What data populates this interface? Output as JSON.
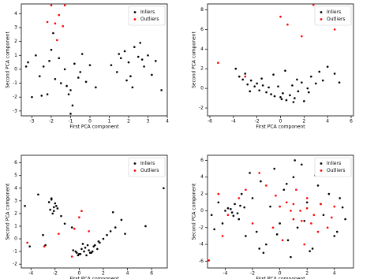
{
  "chart_data": [
    {
      "type": "scatter",
      "x_label": "First PCA component",
      "y_label": "Second PCA component",
      "legend": "upper right",
      "xlim": [
        -3.55,
        4.0
      ],
      "xticks": [
        -3,
        -2,
        -1,
        0,
        1,
        2,
        3,
        4
      ],
      "ylim": [
        -3.35,
        4.7
      ],
      "yticks": [
        -3,
        -2,
        -1,
        0,
        1,
        2,
        3,
        4
      ],
      "series": [
        {
          "name": "Inliers",
          "color": "#000000",
          "x": [
            -3.2,
            -3.0,
            -2.8,
            -2.6,
            -2.4,
            -2.2,
            -2.0,
            -1.8,
            -1.6,
            -1.5,
            -1.3,
            -1.2,
            -1.0,
            -0.8,
            -0.6,
            -0.4,
            -0.2,
            0.0,
            0.3,
            -2.5,
            -1.9,
            -1.1,
            -0.5,
            -3.3,
            -2.1,
            1.1,
            1.4,
            1.6,
            1.8,
            2.0,
            2.1,
            2.3,
            2.5,
            2.6,
            2.8,
            3.0,
            3.2,
            3.4,
            3.7,
            1.5,
            2.2,
            2.7,
            1.9,
            -0.9,
            -1.0
          ],
          "values": [
            0.5,
            -2.0,
            1.0,
            -0.5,
            0.2,
            -1.8,
            1.4,
            -0.7,
            0.8,
            -1.0,
            0.0,
            -1.2,
            -1.5,
            0.4,
            -0.6,
            1.1,
            -0.9,
            0.3,
            -1.3,
            -1.9,
            2.6,
            -1.8,
            -0.2,
            0.2,
            0.6,
            0.3,
            -0.2,
            0.8,
            1.3,
            0.5,
            -0.5,
            1.6,
            0.9,
            1.9,
            0.2,
            1.0,
            -0.4,
            0.6,
            -1.5,
            1.1,
            -1.3,
            0.7,
            -0.8,
            -2.6,
            -3.2
          ]
        },
        {
          "name": "Outliers",
          "color": "#ff0000",
          "x": [
            -2.0,
            -1.6,
            -1.8,
            -1.4,
            -2.2,
            -1.3,
            -1.7
          ],
          "values": [
            4.6,
            3.9,
            3.3,
            3.1,
            3.4,
            4.6,
            2.1
          ]
        }
      ]
    },
    {
      "type": "scatter",
      "x_label": "First PCA component",
      "y_label": "Second PCA component",
      "legend": "upper right",
      "xlim": [
        -6.2,
        6.2
      ],
      "xticks": [
        -6,
        -4,
        -2,
        0,
        2,
        4,
        6
      ],
      "ylim": [
        -2.8,
        8.6
      ],
      "yticks": [
        -2,
        0,
        2,
        4,
        6,
        8
      ],
      "series": [
        {
          "name": "Inliers",
          "color": "#000000",
          "x": [
            -3.8,
            -3.5,
            -3.2,
            -3.0,
            -2.8,
            -2.5,
            -2.2,
            -2.0,
            -1.8,
            -1.5,
            -1.2,
            -1.0,
            -0.8,
            -0.5,
            -0.2,
            0.0,
            0.2,
            0.5,
            0.8,
            1.0,
            1.2,
            1.5,
            1.8,
            2.0,
            2.3,
            2.6,
            3.0,
            3.3,
            3.6,
            4.0,
            -1.6,
            -0.6,
            0.4,
            1.4,
            2.4,
            -2.6,
            1.1,
            0.1,
            4.6,
            5.0
          ],
          "values": [
            2.0,
            1.2,
            0.9,
            1.5,
            0.4,
            0.8,
            0.2,
            0.5,
            -0.2,
            0.3,
            -0.4,
            0.1,
            -0.6,
            -0.8,
            0.2,
            -0.9,
            -0.5,
            -1.2,
            -0.7,
            0.3,
            -1.0,
            -0.3,
            0.6,
            -1.3,
            0.0,
            1.2,
            0.5,
            1.7,
            0.8,
            2.2,
            1.0,
            1.4,
            1.8,
            0.9,
            -0.4,
            -0.3,
            -1.4,
            -1.1,
            1.5,
            0.6
          ]
        },
        {
          "name": "Outliers",
          "color": "#ff0000",
          "x": [
            -5.3,
            -3.0,
            0.0,
            0.6,
            2.8,
            4.6,
            1.8
          ],
          "values": [
            2.6,
            1.2,
            7.3,
            6.5,
            8.5,
            6.0,
            5.3
          ]
        }
      ]
    },
    {
      "type": "scatter",
      "x_label": "First PCA component",
      "y_label": "Second PCA component",
      "legend": "upper right",
      "xlim": [
        -4.8,
        7.3
      ],
      "xticks": [
        -4,
        -2,
        0,
        2,
        4,
        6
      ],
      "ylim": [
        -2.3,
        6.6
      ],
      "yticks": [
        -2,
        -1,
        0,
        1,
        2,
        3,
        4,
        5,
        6
      ],
      "series": [
        {
          "name": "Inliers",
          "color": "#000000",
          "x": [
            -2.5,
            -2.3,
            -2.1,
            -1.9,
            -2.4,
            -2.2,
            -2.0,
            -2.3,
            -2.1,
            -1.8,
            -0.5,
            -0.2,
            0.0,
            0.2,
            0.4,
            0.6,
            0.8,
            1.0,
            1.2,
            1.5,
            -0.3,
            0.1,
            0.5,
            0.9,
            1.3,
            1.7,
            2.0,
            2.3,
            2.6,
            3.0,
            -4.5,
            -3.4,
            -3.0,
            -2.8,
            -1.5,
            -1.2,
            -0.6,
            3.5,
            4.5,
            7.0,
            0.3,
            0.7,
            1.1,
            -0.1,
            2.8,
            -4.1,
            3.8,
            5.5,
            0.0,
            1.6
          ],
          "values": [
            2.9,
            3.1,
            2.5,
            2.6,
            2.3,
            2.0,
            2.8,
            3.2,
            2.2,
            2.4,
            -0.9,
            -1.1,
            -1.2,
            -0.8,
            -1.0,
            -1.3,
            -0.9,
            -1.1,
            -0.6,
            -0.8,
            -1.0,
            -1.2,
            -0.7,
            -1.1,
            -0.5,
            -0.3,
            0.0,
            0.3,
            0.6,
            0.9,
            2.6,
            3.5,
            0.3,
            -0.5,
            1.8,
            1.2,
            0.9,
            1.5,
            6.2,
            4.0,
            -0.4,
            -0.5,
            -1.0,
            -1.3,
            2.1,
            -0.6,
            0.4,
            1.0,
            -1.2,
            -0.2
          ]
        },
        {
          "name": "Outliers",
          "color": "#ff0000",
          "x": [
            -4.3,
            -2.9,
            -1.7,
            -0.4,
            0.2,
            0.0,
            0.8,
            -0.6
          ],
          "values": [
            -0.3,
            -0.6,
            0.4,
            0.8,
            2.2,
            1.7,
            0.6,
            -1.4
          ]
        }
      ]
    },
    {
      "type": "scatter",
      "x_label": "First PCA component",
      "y_label": "Second PCA component",
      "legend": "upper right",
      "xlim": [
        -5.3,
        5.4
      ],
      "xticks": [
        -4,
        -2,
        0,
        2,
        4
      ],
      "ylim": [
        -6.8,
        6.6
      ],
      "yticks": [
        -6,
        -4,
        -2,
        0,
        2,
        4,
        6
      ],
      "series": [
        {
          "name": "Inliers",
          "color": "#000000",
          "x": [
            -5.0,
            -4.5,
            -4.2,
            -3.8,
            -3.5,
            -3.3,
            -3.0,
            -2.8,
            -2.5,
            -2.2,
            -2.0,
            -1.7,
            -1.4,
            -1.0,
            -0.7,
            -0.4,
            0.0,
            0.3,
            0.6,
            1.0,
            1.3,
            1.6,
            2.0,
            2.4,
            2.8,
            3.2,
            3.6,
            4.0,
            4.4,
            4.8,
            -3.6,
            -3.1,
            -2.9,
            -4.0,
            -2.6,
            -1.2,
            0.8,
            2.2,
            3.4,
            4.2,
            -1.5,
            0.5,
            1.8,
            3.0,
            -3.4,
            -0.2,
            2.6,
            4.6,
            -4.8,
            1.1
          ],
          "values": [
            -0.5,
            1.0,
            -1.5,
            0.3,
            -0.2,
            0.8,
            -1.0,
            2.0,
            -3.0,
            4.5,
            1.5,
            -2.5,
            3.5,
            -4.0,
            0.5,
            5.0,
            -1.5,
            2.5,
            -3.5,
            4.0,
            -2.0,
            5.5,
            1.0,
            -4.5,
            3.0,
            -0.5,
            2.0,
            -3.0,
            1.5,
            -1.0,
            0.2,
            -0.3,
            0.6,
            0.0,
            0.4,
            -5.0,
            -5.5,
            -4.8,
            5.8,
            -2.5,
            -4.5,
            3.2,
            -1.2,
            0.8,
            -0.6,
            -2.8,
            4.2,
            0.4,
            -2.2,
            6.0
          ]
        },
        {
          "name": "Outliers",
          "color": "#ff0000",
          "x": [
            -4.5,
            -3.8,
            -3.0,
            -2.0,
            -1.0,
            -0.5,
            0.0,
            0.5,
            1.0,
            1.5,
            2.0,
            2.5,
            3.0,
            3.5,
            4.0,
            0.2,
            1.2,
            1.8,
            2.3,
            -1.5,
            -5.2,
            0.8,
            2.8,
            3.8,
            -0.3,
            1.6,
            -2.5,
            -4.2,
            2.0,
            1.0
          ],
          "values": [
            2.0,
            -0.5,
            1.5,
            -1.5,
            3.0,
            -2.0,
            0.5,
            1.0,
            -1.0,
            0.0,
            1.5,
            -0.5,
            0.8,
            -2.0,
            0.5,
            -3.5,
            2.5,
            -4.0,
            -1.5,
            4.5,
            -5.9,
            0.0,
            -2.5,
            -0.8,
            1.8,
            -1.2,
            2.5,
            -3.0,
            0.3,
            0.8
          ]
        }
      ]
    }
  ]
}
